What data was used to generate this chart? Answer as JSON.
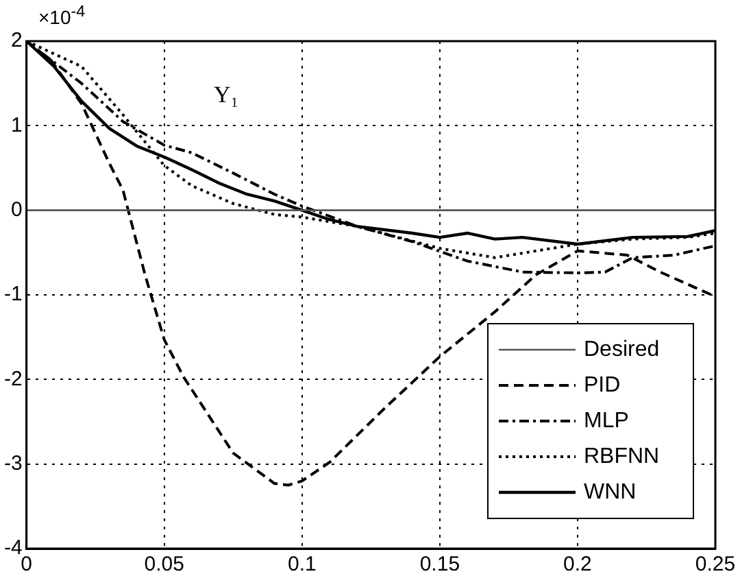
{
  "chart_data": {
    "type": "line",
    "annotations": [
      "×10$^{-4}$",
      "Y₁"
    ],
    "xlim": [
      0,
      0.25
    ],
    "xticks": [
      0,
      0.05,
      0.1,
      0.15,
      0.2,
      0.25
    ],
    "ylim": [
      -4,
      2
    ],
    "yticks": [
      -4,
      -3,
      -2,
      -1,
      0,
      1,
      2
    ],
    "grid": true,
    "legend": "bottom right",
    "marker": "none",
    "series": [
      {
        "name": "Desired",
        "color": "#555555",
        "line_style": "solid",
        "x": [
          0,
          0.25
        ],
        "values": [
          0,
          0
        ]
      },
      {
        "name": "PID",
        "color": "#000000",
        "line_style": "dashed",
        "x": [
          0,
          0.009,
          0.02,
          0.03,
          0.035,
          0.043,
          0.05,
          0.057,
          0.075,
          0.09,
          0.095,
          0.1,
          0.11,
          0.13,
          0.15,
          0.17,
          0.185,
          0.2,
          0.218,
          0.23,
          0.25
        ],
        "values": [
          2,
          1.77,
          1.26,
          0.56,
          0.24,
          -0.76,
          -1.53,
          -1.97,
          -2.87,
          -3.23,
          -3.25,
          -3.2,
          -2.98,
          -2.34,
          -1.73,
          -1.2,
          -0.76,
          -0.48,
          -0.53,
          -0.73,
          -1.02
        ]
      },
      {
        "name": "MLP",
        "color": "#000000",
        "line_style": "dashdot",
        "x": [
          0,
          0.02,
          0.035,
          0.05,
          0.06,
          0.075,
          0.09,
          0.1,
          0.12,
          0.14,
          0.16,
          0.18,
          0.2,
          0.21,
          0.22,
          0.235,
          0.25
        ],
        "values": [
          2,
          1.5,
          1.05,
          0.77,
          0.68,
          0.44,
          0.19,
          0.05,
          -0.19,
          -0.37,
          -0.6,
          -0.73,
          -0.74,
          -0.73,
          -0.56,
          -0.53,
          -0.42
        ]
      },
      {
        "name": "RBFNN",
        "color": "#000000",
        "line_style": "dotted",
        "x": [
          0,
          0.02,
          0.035,
          0.05,
          0.06,
          0.075,
          0.09,
          0.1,
          0.12,
          0.15,
          0.17,
          0.2,
          0.22,
          0.24,
          0.25
        ],
        "values": [
          2,
          1.7,
          1.13,
          0.53,
          0.29,
          0.08,
          -0.05,
          -0.08,
          -0.19,
          -0.45,
          -0.56,
          -0.4,
          -0.34,
          -0.32,
          -0.27
        ]
      },
      {
        "name": "WNN",
        "color": "#000000",
        "line_style": "solid",
        "x": [
          0,
          0.01,
          0.02,
          0.03,
          0.04,
          0.05,
          0.06,
          0.07,
          0.08,
          0.09,
          0.1,
          0.11,
          0.12,
          0.14,
          0.15,
          0.16,
          0.17,
          0.18,
          0.2,
          0.22,
          0.24,
          0.25
        ],
        "values": [
          2,
          1.7,
          1.29,
          0.97,
          0.76,
          0.63,
          0.48,
          0.32,
          0.19,
          0.11,
          0,
          -0.11,
          -0.19,
          -0.27,
          -0.32,
          -0.27,
          -0.34,
          -0.32,
          -0.4,
          -0.32,
          -0.31,
          -0.24
        ]
      }
    ]
  }
}
